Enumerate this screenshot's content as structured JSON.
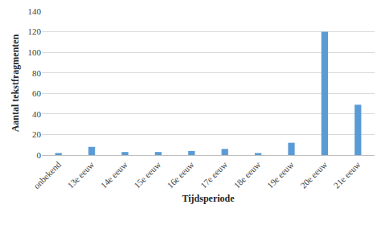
{
  "chart_data": {
    "type": "bar",
    "x_label": "Tijdsperiode",
    "y_label": "Aantal tekstfragmenten",
    "categories": [
      "onbekend",
      "13e eeuw",
      "14e eeuw",
      "15e eeuw",
      "16e eeuw",
      "17e eeuw",
      "18e eeuw",
      "19e eeuw",
      "20e eeuw",
      "21e eeuw"
    ],
    "values": [
      2,
      8,
      3,
      3,
      4,
      6,
      2,
      12,
      120,
      49
    ],
    "color": "#5b9bd5",
    "ylim": [
      0,
      140
    ],
    "yticks": [
      0,
      20,
      40,
      60,
      80,
      100,
      120,
      140
    ],
    "grid": true
  }
}
